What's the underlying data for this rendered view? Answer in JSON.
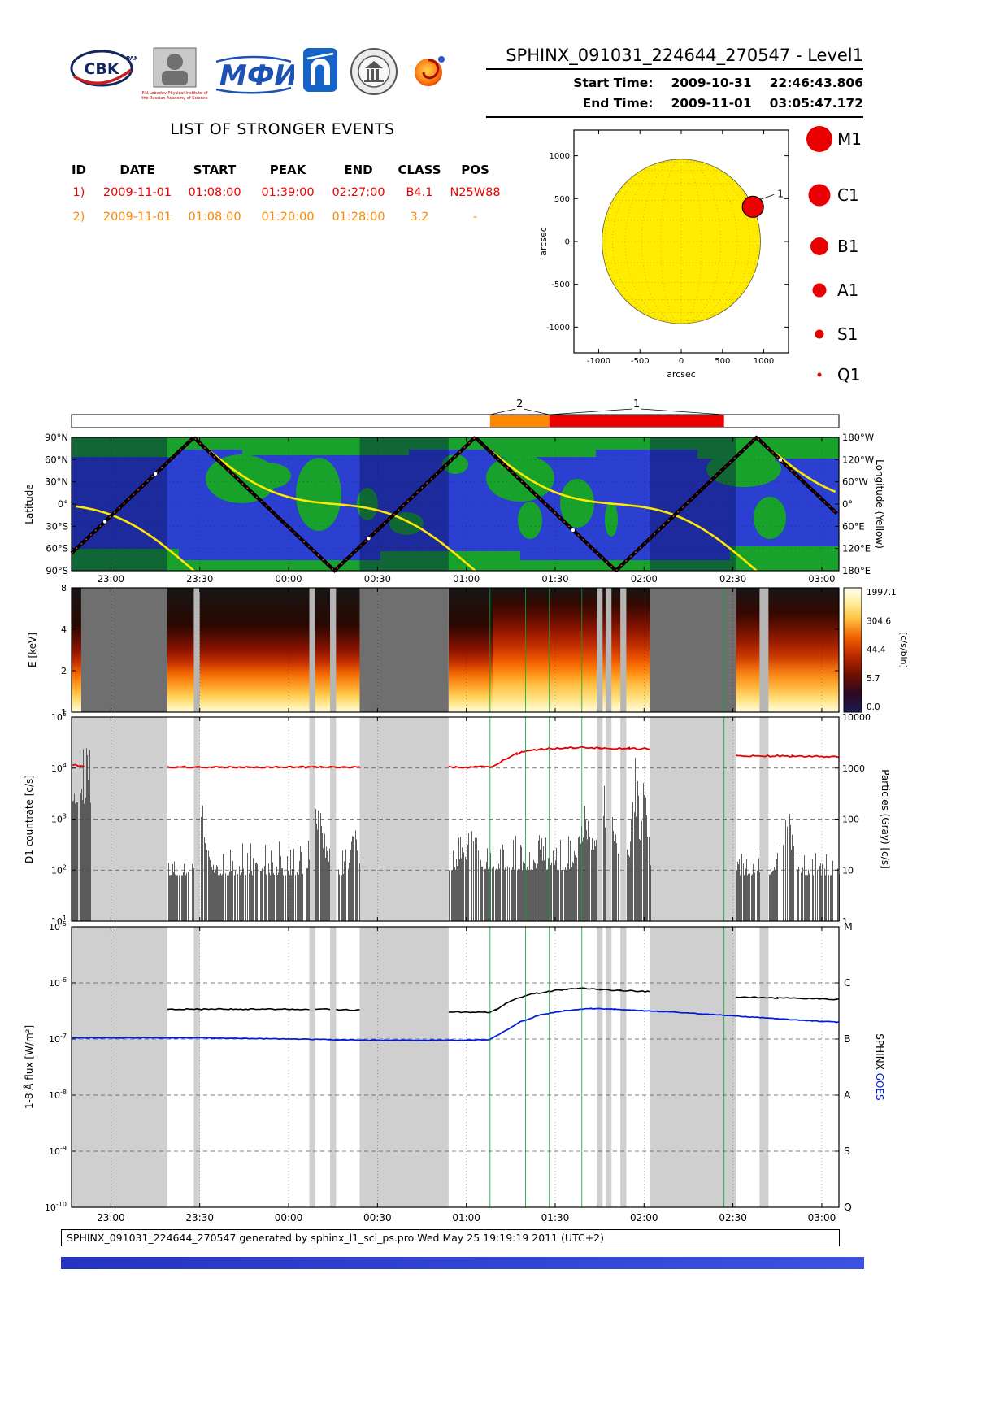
{
  "header": {
    "title": "SPHINX_091031_224644_270547 - Level1",
    "start_label": "Start Time:",
    "start_date": "2009-10-31",
    "start_time": "22:46:43.806",
    "end_label": "End Time:",
    "end_date": "2009-11-01",
    "end_time": "03:05:47.172",
    "logos": {
      "cbk": "CBK",
      "cbk_sub": "PAN",
      "lebedev_caption": "P.N.Lebedev Physical Institute of the Russian Academy of Science",
      "mephi": "МФИ"
    }
  },
  "events": {
    "title": "LIST OF STRONGER EVENTS",
    "columns": [
      "ID",
      "DATE",
      "START",
      "PEAK",
      "END",
      "CLASS",
      "POS"
    ],
    "rows": [
      {
        "id": "1)",
        "date": "2009-11-01",
        "start": "01:08:00",
        "peak": "01:39:00",
        "end": "02:27:00",
        "class": "B4.1",
        "pos": "N25W88",
        "color": "#ee0000"
      },
      {
        "id": "2)",
        "date": "2009-11-01",
        "start": "01:08:00",
        "peak": "01:20:00",
        "end": "01:28:00",
        "class": "3.2",
        "pos": "-",
        "color": "#ff8800"
      }
    ]
  },
  "footer": {
    "text": "SPHINX_091031_224644_270547 generated by sphinx_l1_sci_ps.pro Wed May 25 19:19:19 2011 (UTC+2)"
  },
  "colors": {
    "event1": "#ee0000",
    "event2": "#ff8800",
    "sphinx_line": "#000000",
    "goes_line": "#0018e0",
    "red_countrate": "#e80000",
    "map_sea": "#2b3fd0",
    "map_land": "#18a22b",
    "track_yellow": "#ffe800",
    "event_marker_green": "#00aa33",
    "gap_shade": "#cfcfcf",
    "gap_dark": "#6f6f6f",
    "gap_light": "#b6b6b6"
  },
  "chart_shared": {
    "time_axis": {
      "start": "22:46:43",
      "end": "03:05:47",
      "ticks": [
        "23:00",
        "23:30",
        "00:00",
        "00:30",
        "01:00",
        "01:30",
        "02:00",
        "02:30",
        "03:00"
      ]
    },
    "shade_regions": [
      [
        "22:46:43",
        "23:19"
      ],
      [
        "00:24",
        "00:54"
      ],
      [
        "02:02",
        "02:31"
      ]
    ],
    "minor_gaps": [
      [
        "23:28",
        "23:30"
      ],
      [
        "00:07",
        "00:09"
      ],
      [
        "00:14",
        "00:16"
      ],
      [
        "01:44",
        "01:46"
      ],
      [
        "01:47",
        "01:49"
      ],
      [
        "01:52",
        "01:54"
      ],
      [
        "02:39",
        "02:42"
      ]
    ],
    "event_lines": [
      "01:08",
      "01:20",
      "01:28",
      "01:39",
      "02:27"
    ]
  },
  "chart_data": [
    {
      "id": "sun_disk",
      "type": "scatter",
      "xlabel": "arcsec",
      "ylabel": "arcsec",
      "xlim": [
        -1300,
        1300
      ],
      "ylim": [
        -1300,
        1300
      ],
      "xticks": [
        -1000,
        -500,
        0,
        500,
        1000
      ],
      "yticks": [
        1000,
        500,
        0,
        -500,
        -1000
      ],
      "sun_radius_arcsec": 960,
      "flares": [
        {
          "label": "1",
          "x": 869,
          "y": 405,
          "color": "#ee0000"
        }
      ],
      "legend": [
        {
          "label": "M1",
          "r": 16
        },
        {
          "label": "C1",
          "r": 13.5
        },
        {
          "label": "B1",
          "r": 11
        },
        {
          "label": "A1",
          "r": 8.5
        },
        {
          "label": "S1",
          "r": 5.5
        },
        {
          "label": "Q1",
          "r": 2.5
        }
      ]
    },
    {
      "id": "event_bar",
      "type": "timeline",
      "segments": [
        {
          "label": "2",
          "start": "01:08",
          "end": "01:28",
          "color": "#ff8800"
        },
        {
          "label": "1",
          "start": "01:28",
          "end": "02:27",
          "color": "#ee0000"
        }
      ]
    },
    {
      "id": "ground_track",
      "type": "map",
      "ylabel": "Latitude",
      "ylabel_right": "Longitude (Yellow)",
      "lat_ticks": [
        "90°N",
        "60°N",
        "30°N",
        "0°",
        "30°S",
        "60°S",
        "90°S"
      ],
      "lon_ticks": [
        "180°W",
        "120°W",
        "60°W",
        "0°",
        "60°E",
        "120°E",
        "180°E"
      ],
      "track_peaks": [
        "23:28",
        "01:03",
        "02:38"
      ],
      "orbit_period_min": 95,
      "night_bands": [
        [
          "22:46:43",
          "23:19"
        ],
        [
          "00:24",
          "00:54"
        ],
        [
          "02:02",
          "02:31"
        ]
      ],
      "track_dots": [
        "22:58",
        "23:15",
        "00:27",
        "01:36",
        "02:46"
      ]
    },
    {
      "id": "spectrogram",
      "type": "heatmap",
      "ylabel": "E [keV]",
      "yticks": [
        8,
        4,
        2,
        1
      ],
      "colorbar_label": "[c/s/bin]",
      "colorbar_ticks": [
        "1997.1",
        "304.6",
        "44.4",
        "5.7",
        "0.0"
      ],
      "intervals": [
        {
          "start": "22:46:43",
          "end": "22:50",
          "mode": "normal"
        },
        {
          "start": "23:19",
          "end": "00:24",
          "mode": "normal"
        },
        {
          "start": "00:54",
          "end": "01:09",
          "mode": "normal"
        },
        {
          "start": "01:09",
          "end": "02:02",
          "mode": "flare"
        },
        {
          "start": "02:31",
          "end": "03:05:47",
          "mode": "post"
        }
      ],
      "gaps": [
        [
          "22:50",
          "23:19"
        ],
        [
          "00:24",
          "00:54"
        ],
        [
          "02:02",
          "02:31"
        ]
      ]
    },
    {
      "id": "d1_countrate",
      "type": "line",
      "ylabel": "D1 countrate [c/s]",
      "ylabel_right": "Particles (Gray) [c/s]",
      "yticks": [
        "10^5",
        "10^4",
        "10^3",
        "10^2",
        "10^1"
      ],
      "yticks_right": [
        "10000",
        "1000",
        "100",
        "10",
        "1"
      ],
      "ylim_exp": [
        1,
        5
      ],
      "red_segments": [
        [
          [
            "22:47",
            11500
          ],
          [
            "22:51",
            10600
          ]
        ],
        [
          [
            "23:19",
            10400
          ],
          [
            "23:45",
            10400
          ],
          [
            "00:24",
            10400
          ]
        ],
        [
          [
            "00:54",
            10300
          ],
          [
            "01:08",
            10500
          ],
          [
            "01:12",
            13500
          ],
          [
            "01:17",
            19000
          ],
          [
            "01:22",
            22500
          ],
          [
            "01:28",
            24000
          ],
          [
            "01:36",
            25000
          ],
          [
            "01:45",
            24800
          ],
          [
            "01:55",
            24200
          ],
          [
            "02:02",
            23800
          ]
        ],
        [
          [
            "02:31",
            17500
          ],
          [
            "02:50",
            17200
          ],
          [
            "03:05:47",
            16800
          ]
        ]
      ],
      "noise_regions": [
        {
          "start": "22:46:43",
          "end": "22:53",
          "typ": 3.3,
          "max": 4.55,
          "density": 0.95,
          "bursts": []
        },
        {
          "start": "23:19",
          "end": "00:24",
          "typ": 1.9,
          "max": 2.6,
          "density": 0.78,
          "bursts": [
            {
              "center": "23:31",
              "w": 1.5,
              "peak": 3.3
            },
            {
              "center": "00:10",
              "w": 2,
              "peak": 3.4
            },
            {
              "center": "00:22",
              "w": 1,
              "peak": 3.0
            }
          ]
        },
        {
          "start": "00:54",
          "end": "02:02",
          "typ": 2.0,
          "max": 2.7,
          "density": 0.82,
          "bursts": [
            {
              "center": "01:02",
              "w": 1.5,
              "peak": 3.15
            },
            {
              "center": "01:40",
              "w": 2,
              "peak": 3.3
            },
            {
              "center": "01:47",
              "w": 2.5,
              "peak": 3.7
            },
            {
              "center": "01:57",
              "w": 1.2,
              "peak": 4.25
            },
            {
              "center": "02:00",
              "w": 0.8,
              "peak": 4.4
            }
          ]
        },
        {
          "start": "02:31",
          "end": "03:05:47",
          "typ": 1.9,
          "max": 2.45,
          "density": 0.72,
          "bursts": [
            {
              "center": "02:48",
              "w": 2,
              "peak": 3.35
            }
          ]
        }
      ]
    },
    {
      "id": "xray_flux",
      "type": "line",
      "ylabel": "1-8 Å flux [W/m²]",
      "yticks": [
        "10^-5",
        "10^-6",
        "10^-7",
        "10^-8",
        "10^-9",
        "10^-10"
      ],
      "goes_class_letters": [
        "M",
        "C",
        "B",
        "A",
        "S",
        "Q"
      ],
      "right_axis_label_sphinx": "SPHINX",
      "right_axis_label_goes": "GOES",
      "sphinx_segments": [
        [
          [
            "23:19",
            3.4e-07
          ],
          [
            "00:07",
            3.4e-07
          ]
        ],
        [
          [
            "00:09",
            3.4e-07
          ],
          [
            "00:14",
            3.4e-07
          ]
        ],
        [
          [
            "00:16",
            3.35e-07
          ],
          [
            "00:24",
            3.3e-07
          ]
        ],
        [
          [
            "00:54",
            3e-07
          ],
          [
            "01:08",
            3e-07
          ],
          [
            "01:10",
            3.3e-07
          ],
          [
            "01:13",
            4.2e-07
          ],
          [
            "01:17",
            5.3e-07
          ],
          [
            "01:22",
            6.3e-07
          ],
          [
            "01:28",
            7.1e-07
          ],
          [
            "01:34",
            7.7e-07
          ],
          [
            "01:39",
            8e-07
          ],
          [
            "01:45",
            7.6e-07
          ],
          [
            "01:52",
            7.3e-07
          ],
          [
            "02:02",
            7e-07
          ]
        ],
        [
          [
            "02:31",
            5.6e-07
          ],
          [
            "02:45",
            5.4e-07
          ],
          [
            "03:05:47",
            5.1e-07
          ]
        ]
      ],
      "goes_series": [
        [
          "22:46:43",
          1.05e-07
        ],
        [
          "23:30",
          1.05e-07
        ],
        [
          "00:00",
          1e-07
        ],
        [
          "00:30",
          9.5e-08
        ],
        [
          "01:00",
          9.5e-08
        ],
        [
          "01:08",
          9.8e-08
        ],
        [
          "01:12",
          1.3e-07
        ],
        [
          "01:18",
          2e-07
        ],
        [
          "01:25",
          2.7e-07
        ],
        [
          "01:33",
          3.2e-07
        ],
        [
          "01:42",
          3.5e-07
        ],
        [
          "01:50",
          3.4e-07
        ],
        [
          "02:00",
          3.2e-07
        ],
        [
          "02:15",
          2.9e-07
        ],
        [
          "02:30",
          2.6e-07
        ],
        [
          "02:45",
          2.3e-07
        ],
        [
          "03:00",
          2.05e-07
        ],
        [
          "03:05:47",
          2e-07
        ]
      ]
    }
  ]
}
